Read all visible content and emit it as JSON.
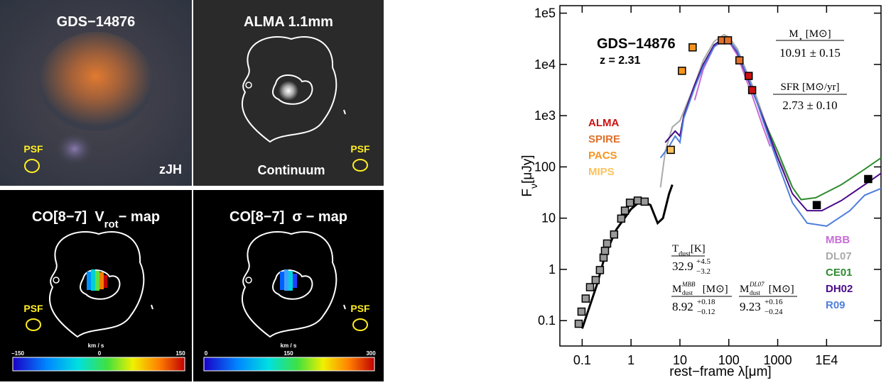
{
  "panels": [
    {
      "title": "GDS−14876",
      "psf": "PSF",
      "band": "zJH"
    },
    {
      "title": "ALMA 1.1mm",
      "caption": "Continuum",
      "psf": "PSF"
    },
    {
      "title": "CO[8−7]  V",
      "title_sub": "rot",
      "title_end": "− map",
      "psf": "PSF",
      "colorbar_label": "km / s",
      "colorbar_ticks": [
        "−150",
        "0",
        "150"
      ]
    },
    {
      "title": "CO[8−7]  σ − map",
      "psf": "PSF",
      "colorbar_label": "km / s",
      "colorbar_ticks": [
        "0",
        "150",
        "300"
      ]
    }
  ],
  "chart_data": {
    "type": "scatter",
    "x_scale": "log",
    "y_scale": "log",
    "xlabel": "rest−frame λ[μm]",
    "ylabel": "F",
    "ylabel_sub": "ν",
    "ylabel_unit": "[μJy]",
    "xlim": [
      0.035,
      130000
    ],
    "ylim": [
      0.032,
      140000
    ],
    "xticks": [
      0.1,
      1,
      10,
      100,
      1000,
      {
        "value": 10000,
        "label": "1E4"
      }
    ],
    "yticks": [
      0.1,
      1,
      10,
      100,
      {
        "value": 1000,
        "label": "1e3"
      },
      {
        "value": 10000,
        "label": "1e4"
      },
      {
        "value": 100000,
        "label": "1e5"
      }
    ],
    "annotations": {
      "source": "GDS−14876",
      "redshift": "z = 2.31",
      "mstar": {
        "label": "M",
        "label_sub": "⋆",
        "unit": " [M⊙]",
        "value": "10.91 ± 0.15"
      },
      "sfr": {
        "label": "SFR [M⊙/yr]",
        "value": "2.73 ± 0.10"
      },
      "tdust": {
        "label": "T",
        "label_sub": "dust",
        "unit": "[K]",
        "value": "32.9",
        "upper": "+4.5",
        "lower": "−3.2"
      },
      "mdust_mbb": {
        "label": "M",
        "label_sup": "MBB",
        "label_sub": "dust",
        "unit": " [M⊙]",
        "value": "8.92",
        "upper": "+0.18",
        "lower": "−0.12"
      },
      "mdust_dl07": {
        "label": "M",
        "label_sup": "DL07",
        "label_sub": "dust",
        "unit": " [M⊙]",
        "value": "9.23",
        "upper": "+0.16",
        "lower": "−0.24"
      }
    },
    "series": [
      {
        "name": "MBB",
        "color": "#c86dd7",
        "style": "line",
        "x": [
          20,
          30,
          50,
          80,
          100,
          150,
          200,
          300,
          500,
          700
        ],
        "values": [
          2000,
          8000,
          22000,
          30000,
          28000,
          15000,
          7000,
          2500,
          600,
          250
        ]
      },
      {
        "name": "DL07",
        "color": "#aaaaaa",
        "style": "line",
        "x": [
          4,
          5,
          7,
          10,
          20,
          30,
          50,
          80,
          100,
          150,
          200,
          300,
          500,
          1000,
          2000
        ],
        "values": [
          40,
          200,
          600,
          800,
          4000,
          12000,
          28000,
          38000,
          34000,
          20000,
          10000,
          4000,
          1000,
          160,
          40
        ]
      },
      {
        "name": "CE01",
        "color": "#2e8b2e",
        "style": "line",
        "x": [
          5,
          8,
          10,
          12,
          20,
          30,
          50,
          80,
          100,
          150,
          200,
          300,
          500,
          1000,
          2000,
          3000,
          6000,
          20000,
          60000,
          130000
        ],
        "values": [
          300,
          500,
          400,
          1000,
          4000,
          10000,
          24000,
          33000,
          30000,
          17000,
          8500,
          3200,
          900,
          200,
          40,
          23,
          25,
          45,
          90,
          150
        ]
      },
      {
        "name": "DH02",
        "color": "#4b0a8a",
        "style": "line",
        "x": [
          5,
          8,
          10,
          12,
          20,
          30,
          50,
          80,
          100,
          150,
          200,
          300,
          500,
          1000,
          2000,
          4000,
          8000,
          20000,
          60000,
          130000
        ],
        "values": [
          300,
          500,
          400,
          1000,
          4000,
          10000,
          24000,
          33000,
          30000,
          17000,
          8500,
          3200,
          900,
          150,
          30,
          14,
          14,
          22,
          45,
          75
        ]
      },
      {
        "name": "R09",
        "color": "#4f7fdc",
        "style": "line",
        "x": [
          4,
          6,
          8,
          10,
          12,
          20,
          30,
          50,
          80,
          100,
          150,
          200,
          300,
          500,
          1000,
          2000,
          4000,
          10000,
          30000,
          60000,
          130000
        ],
        "values": [
          150,
          250,
          400,
          300,
          900,
          3500,
          9000,
          22000,
          32000,
          30000,
          18000,
          9000,
          3500,
          800,
          120,
          20,
          8,
          7,
          14,
          28,
          38
        ]
      },
      {
        "color": "#000000",
        "style": "line",
        "x": [
          0.1,
          0.2,
          0.3,
          0.5,
          1,
          1.6,
          2.5,
          3.5,
          4.5,
          6,
          7
        ],
        "values": [
          0.07,
          0.5,
          2,
          6,
          15,
          22,
          18,
          8,
          10,
          30,
          45
        ]
      },
      {
        "color": "#999999",
        "style": "square",
        "x": [
          0.085,
          0.097,
          0.118,
          0.145,
          0.189,
          0.231,
          0.274,
          0.293,
          0.324,
          0.45,
          0.63,
          0.75,
          0.95,
          1.37,
          1.9
        ],
        "values": [
          0.087,
          0.15,
          0.27,
          0.45,
          0.62,
          0.97,
          1.7,
          2.3,
          3.2,
          4.8,
          9.8,
          14,
          20,
          22,
          21
        ]
      },
      {
        "name": "ALMA",
        "color": "#cc1111",
        "style": "square",
        "x": [
          255,
          300
        ],
        "values": [
          5960,
          3150
        ]
      },
      {
        "name": "SPIRE",
        "color": "#e0702a",
        "style": "square",
        "x": [
          72,
          96,
          165
        ],
        "values": [
          29500,
          29500,
          12000
        ]
      },
      {
        "name": "PACS",
        "color": "#f7941d",
        "style": "square",
        "x": [
          11,
          18.2
        ],
        "values": [
          7500,
          21500
        ]
      },
      {
        "name": "MIPS",
        "color": "#fbc25e",
        "style": "square",
        "x": [
          6.5
        ],
        "values": [
          215
        ]
      },
      {
        "color": "#000000",
        "style": "square",
        "x": [
          6300,
          71000
        ],
        "values": [
          18,
          58
        ]
      }
    ]
  }
}
